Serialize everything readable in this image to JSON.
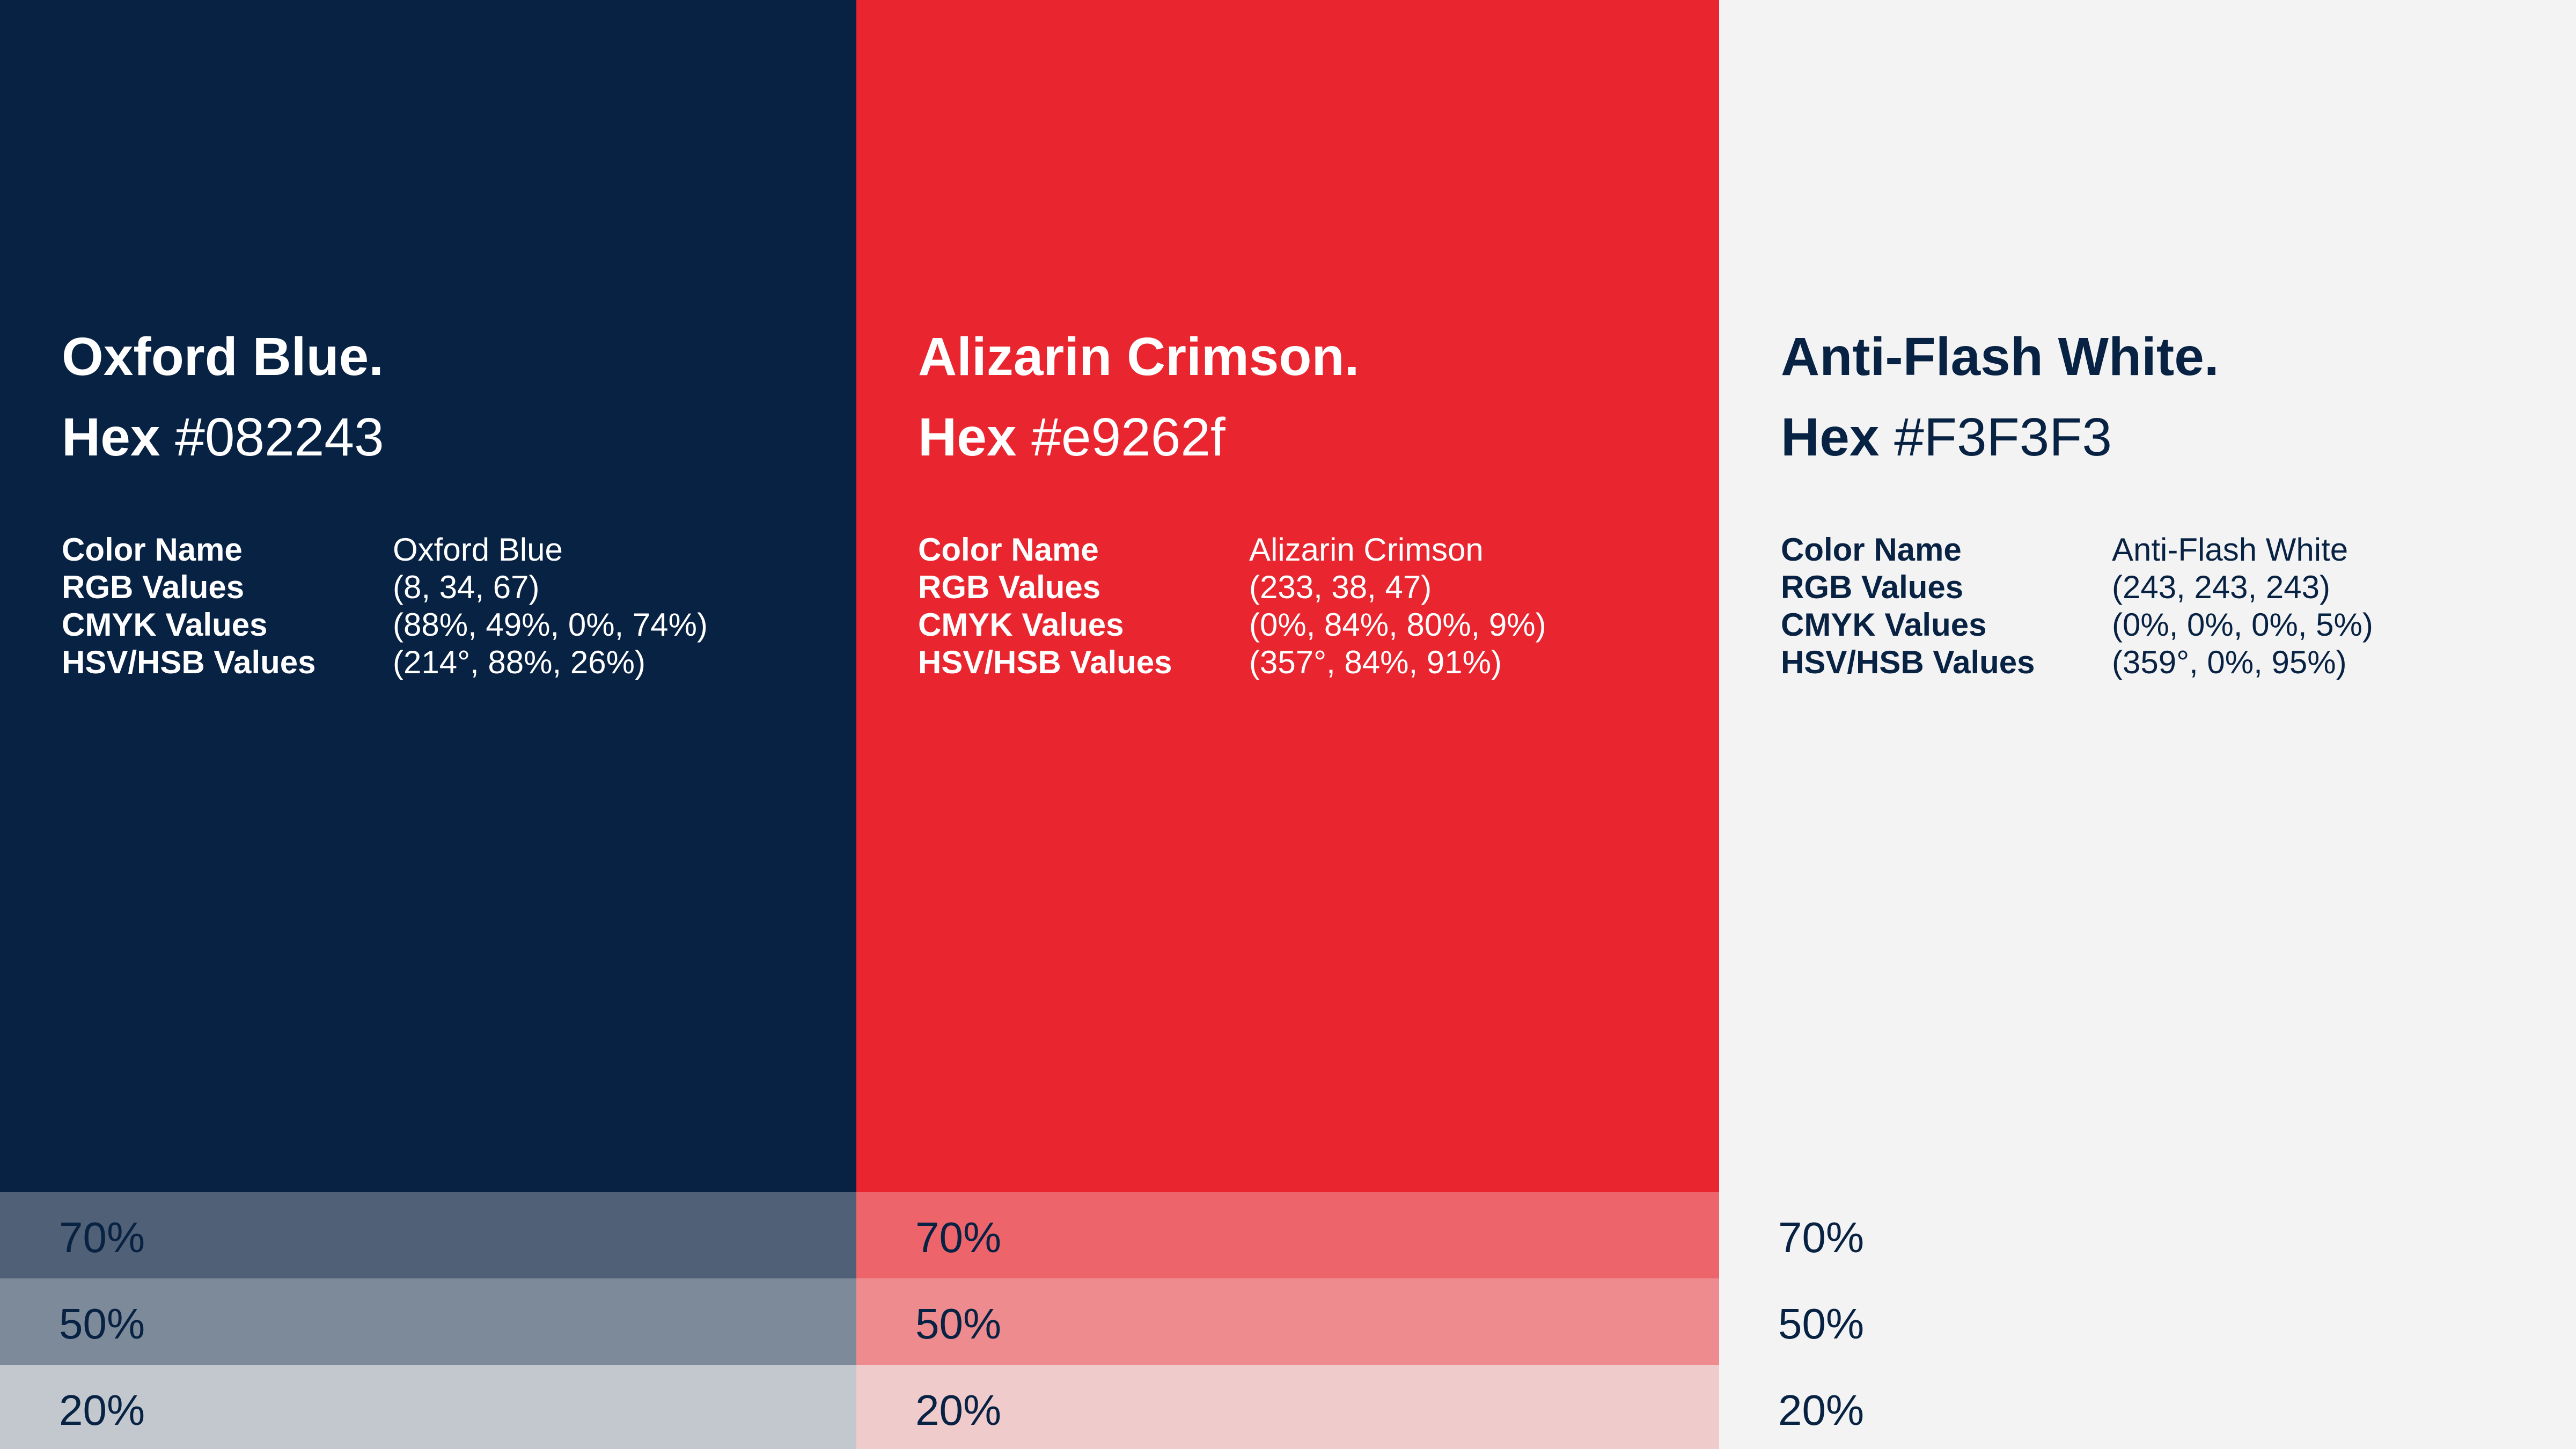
{
  "colors": [
    {
      "title": "Oxford Blue.",
      "hex_label": "Hex",
      "hex_value": "#082243",
      "background": "#082243",
      "text_color": "#ffffff",
      "details": [
        {
          "label": "Color Name",
          "value": "Oxford Blue"
        },
        {
          "label": "RGB Values",
          "value": "(8, 34, 67)"
        },
        {
          "label": "CMYK Values",
          "value": "(88%, 49%, 0%, 74%)"
        },
        {
          "label": "HSV/HSB Values",
          "value": "(214°, 88%, 26%)"
        }
      ],
      "tints": [
        {
          "label": "70%",
          "color": "#506076"
        },
        {
          "label": "50%",
          "color": "#7d8a9a"
        },
        {
          "label": "20%",
          "color": "#c3c8cf"
        }
      ]
    },
    {
      "title": "Alizarin Crimson.",
      "hex_label": "Hex",
      "hex_value": "#e9262f",
      "background": "#e9262f",
      "text_color": "#ffffff",
      "details": [
        {
          "label": "Color Name",
          "value": "Alizarin Crimson"
        },
        {
          "label": "RGB Values",
          "value": "(233, 38, 47)"
        },
        {
          "label": "CMYK Values",
          "value": "(0%, 84%, 80%, 9%)"
        },
        {
          "label": "HSV/HSB Values",
          "value": "(357°, 84%, 91%)"
        }
      ],
      "tints": [
        {
          "label": "70%",
          "color": "#ed656b"
        },
        {
          "label": "50%",
          "color": "#ee8b8e"
        },
        {
          "label": "20%",
          "color": "#f0cbcb"
        }
      ]
    },
    {
      "title": "Anti-Flash White.",
      "hex_label": "Hex",
      "hex_value": "#F3F3F3",
      "background": "#f3f3f3",
      "text_color": "#082243",
      "details": [
        {
          "label": "Color Name",
          "value": "Anti-Flash White"
        },
        {
          "label": "RGB Values",
          "value": "(243, 243, 243)"
        },
        {
          "label": "CMYK Values",
          "value": "(0%, 0%, 0%, 5%)"
        },
        {
          "label": "HSV/HSB Values",
          "value": "(359°, 0%, 95%)"
        }
      ],
      "tints": [
        {
          "label": "70%",
          "color": "#f3f3f3"
        },
        {
          "label": "50%",
          "color": "#f3f3f3"
        },
        {
          "label": "20%",
          "color": "#f3f3f3"
        }
      ]
    }
  ],
  "tint_text_color": "#082243"
}
